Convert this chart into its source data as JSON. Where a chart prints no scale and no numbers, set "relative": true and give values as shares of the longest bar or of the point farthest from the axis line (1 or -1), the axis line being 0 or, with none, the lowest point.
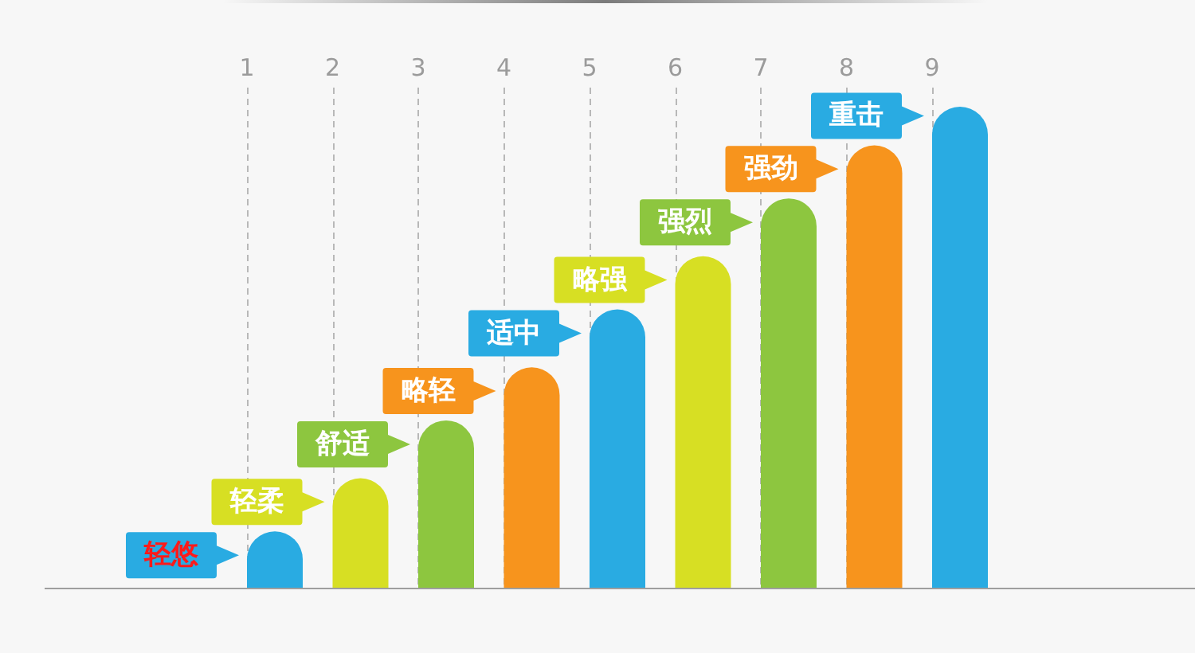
{
  "chart_data": {
    "type": "bar",
    "relative": true,
    "grid": "x",
    "categories": [
      "1",
      "2",
      "3",
      "4",
      "5",
      "6",
      "7",
      "8",
      "9"
    ],
    "values": [
      0.12,
      0.23,
      0.35,
      0.46,
      0.58,
      0.69,
      0.81,
      0.92,
      1
    ],
    "colors": [
      "#29abe2",
      "#d7df23",
      "#8dc63f",
      "#f7941d",
      "#29abe2",
      "#d7df23",
      "#8dc63f",
      "#f7941d",
      "#29abe2"
    ],
    "annotations": [
      "轻悠",
      "轻柔",
      "舒适",
      "略轻",
      "适中",
      "略强",
      "强烈",
      "强劲",
      "重击"
    ]
  }
}
